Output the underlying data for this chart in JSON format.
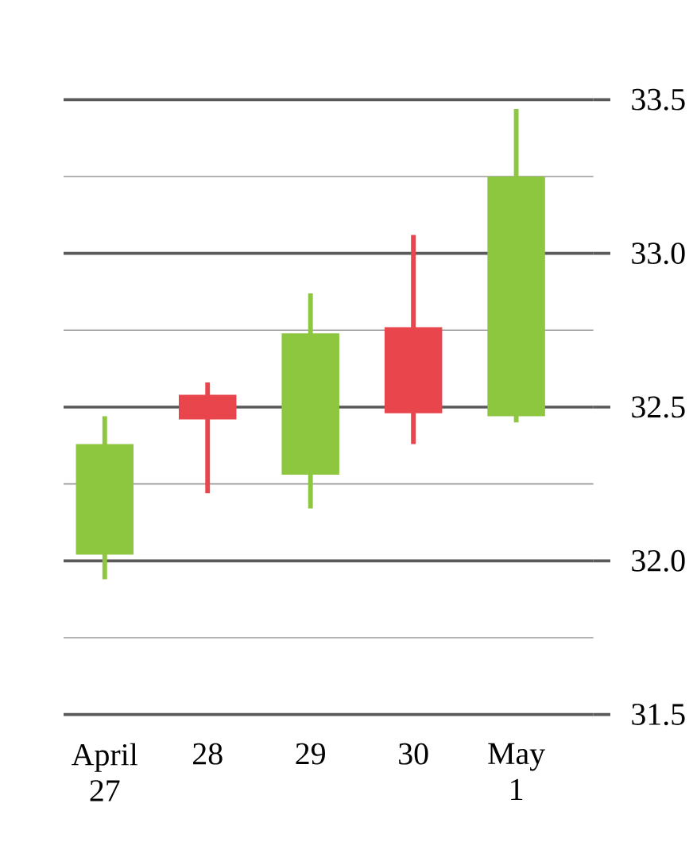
{
  "chart_data": {
    "type": "candlestick",
    "categories": [
      "April 27",
      "28",
      "29",
      "30",
      "May 1"
    ],
    "ohlc": [
      [
        32.02,
        32.47,
        31.94,
        32.38
      ],
      [
        32.54,
        32.58,
        32.22,
        32.46
      ],
      [
        32.28,
        32.87,
        32.17,
        32.74
      ],
      [
        32.76,
        33.06,
        32.38,
        32.48
      ],
      [
        32.47,
        33.47,
        32.45,
        33.25
      ]
    ],
    "colors": [
      "#8dc63f",
      "#e8464c",
      "#8dc63f",
      "#e8464c",
      "#8dc63f"
    ],
    "ylim": [
      31.5,
      33.5
    ],
    "yticks": [
      31.5,
      {
        "value": 31.75,
        "label": null
      },
      {
        "value": 32,
        "label": "32.0"
      },
      {
        "value": 32.25,
        "label": null
      },
      32.5,
      {
        "value": 32.75,
        "label": null
      },
      {
        "value": 33,
        "label": "33.0"
      },
      {
        "value": 33.25,
        "label": null
      },
      33.5
    ],
    "grid": "y"
  }
}
